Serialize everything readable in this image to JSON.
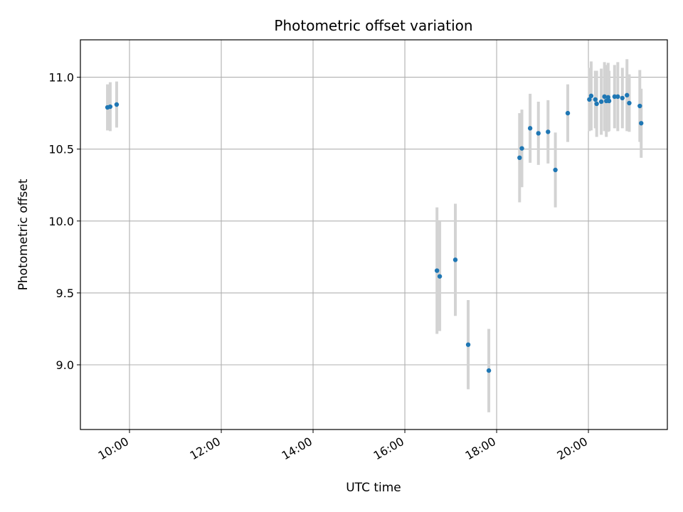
{
  "chart_data": {
    "type": "scatter",
    "title": "Photometric offset variation",
    "xlabel": "UTC time",
    "ylabel": "Photometric offset",
    "x_unit": "hours UTC",
    "xlim": [
      8.93,
      21.72
    ],
    "ylim": [
      8.55,
      11.26
    ],
    "xticks": [
      {
        "value": 10,
        "label": "10:00"
      },
      {
        "value": 12,
        "label": "12:00"
      },
      {
        "value": 14,
        "label": "14:00"
      },
      {
        "value": 16,
        "label": "16:00"
      },
      {
        "value": 18,
        "label": "18:00"
      },
      {
        "value": 20,
        "label": "20:00"
      }
    ],
    "yticks": [
      {
        "value": 9.0,
        "label": "9.0"
      },
      {
        "value": 9.5,
        "label": "9.5"
      },
      {
        "value": 10.0,
        "label": "10.0"
      },
      {
        "value": 10.5,
        "label": "10.5"
      },
      {
        "value": 11.0,
        "label": "11.0"
      }
    ],
    "grid": true,
    "colors": {
      "points": "#1f77b4",
      "errorbars": "#d3d3d3",
      "grid": "#b0b0b0"
    },
    "points": [
      {
        "x": 9.52,
        "y": 10.79,
        "err": 0.16
      },
      {
        "x": 9.58,
        "y": 10.795,
        "err": 0.17
      },
      {
        "x": 9.72,
        "y": 10.81,
        "err": 0.16
      },
      {
        "x": 16.7,
        "y": 9.655,
        "err": 0.44
      },
      {
        "x": 16.76,
        "y": 9.615,
        "err": 0.38
      },
      {
        "x": 17.1,
        "y": 9.73,
        "err": 0.39
      },
      {
        "x": 17.38,
        "y": 9.14,
        "err": 0.31
      },
      {
        "x": 17.83,
        "y": 8.96,
        "err": 0.29
      },
      {
        "x": 18.5,
        "y": 10.44,
        "err": 0.31
      },
      {
        "x": 18.55,
        "y": 10.505,
        "err": 0.27
      },
      {
        "x": 18.73,
        "y": 10.645,
        "err": 0.24
      },
      {
        "x": 18.91,
        "y": 10.61,
        "err": 0.22
      },
      {
        "x": 19.12,
        "y": 10.62,
        "err": 0.22
      },
      {
        "x": 19.28,
        "y": 10.355,
        "err": 0.26
      },
      {
        "x": 19.55,
        "y": 10.75,
        "err": 0.2
      },
      {
        "x": 20.02,
        "y": 10.845,
        "err": 0.22
      },
      {
        "x": 20.06,
        "y": 10.87,
        "err": 0.24
      },
      {
        "x": 20.15,
        "y": 10.845,
        "err": 0.2
      },
      {
        "x": 20.18,
        "y": 10.815,
        "err": 0.23
      },
      {
        "x": 20.28,
        "y": 10.83,
        "err": 0.23
      },
      {
        "x": 20.35,
        "y": 10.865,
        "err": 0.24
      },
      {
        "x": 20.39,
        "y": 10.835,
        "err": 0.25
      },
      {
        "x": 20.43,
        "y": 10.86,
        "err": 0.24
      },
      {
        "x": 20.45,
        "y": 10.835,
        "err": 0.21
      },
      {
        "x": 20.57,
        "y": 10.865,
        "err": 0.22
      },
      {
        "x": 20.64,
        "y": 10.865,
        "err": 0.24
      },
      {
        "x": 20.74,
        "y": 10.855,
        "err": 0.21
      },
      {
        "x": 20.84,
        "y": 10.875,
        "err": 0.25
      },
      {
        "x": 20.89,
        "y": 10.82,
        "err": 0.2
      },
      {
        "x": 21.12,
        "y": 10.8,
        "err": 0.25
      },
      {
        "x": 21.15,
        "y": 10.68,
        "err": 0.24
      }
    ]
  }
}
